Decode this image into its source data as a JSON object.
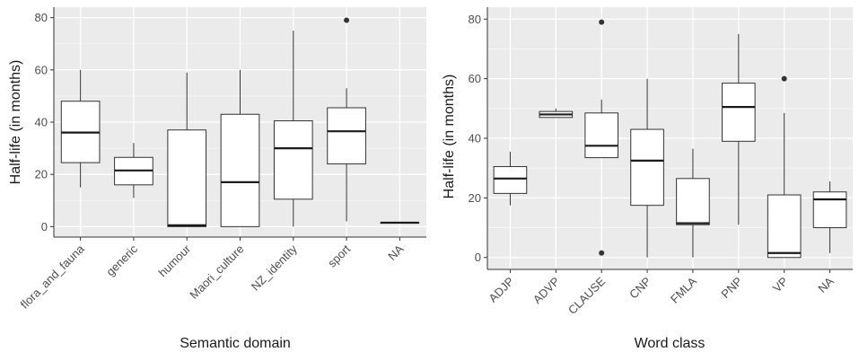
{
  "chart_data": [
    {
      "type": "box",
      "xlabel": "Semantic domain",
      "ylabel": "Half-life (in months)",
      "ylim": [
        -4,
        84
      ],
      "yticks": [
        0,
        20,
        40,
        60,
        80
      ],
      "grid": true,
      "background": "#ebebeb",
      "categories": [
        "flora_and_fauna",
        "generic",
        "humour",
        "Maori_culture",
        "NZ_identity",
        "sport",
        "NA"
      ],
      "boxes": [
        {
          "min": 15,
          "q1": 24.5,
          "median": 36,
          "q3": 48,
          "max": 60,
          "outliers": []
        },
        {
          "min": 11,
          "q1": 16,
          "median": 21.5,
          "q3": 26.5,
          "max": 32,
          "outliers": []
        },
        {
          "min": 0,
          "q1": 0,
          "median": 0.5,
          "q3": 37,
          "max": 59,
          "outliers": []
        },
        {
          "min": 0,
          "q1": 0,
          "median": 17,
          "q3": 43,
          "max": 60,
          "outliers": []
        },
        {
          "min": 0,
          "q1": 10.5,
          "median": 30,
          "q3": 40.5,
          "max": 75,
          "outliers": []
        },
        {
          "min": 2,
          "q1": 24,
          "median": 36.5,
          "q3": 45.5,
          "max": 53,
          "outliers": [
            79
          ]
        },
        {
          "min": 1.5,
          "q1": 1.5,
          "median": 1.5,
          "q3": 1.5,
          "max": 1.5,
          "outliers": []
        }
      ]
    },
    {
      "type": "box",
      "xlabel": "Word class",
      "ylabel": "Half-life (in months)",
      "ylim": [
        -4,
        84
      ],
      "yticks": [
        0,
        20,
        40,
        60,
        80
      ],
      "grid": true,
      "background": "#ebebeb",
      "categories": [
        "ADJP",
        "ADVP",
        "CLAUSE",
        "CNP",
        "FMLA",
        "PNP",
        "VP",
        "NA"
      ],
      "boxes": [
        {
          "min": 17.5,
          "q1": 21.5,
          "median": 26.5,
          "q3": 30.5,
          "max": 35.5,
          "outliers": []
        },
        {
          "min": 47,
          "q1": 47,
          "median": 48,
          "q3": 49,
          "max": 50,
          "outliers": []
        },
        {
          "min": 33.5,
          "q1": 33.5,
          "median": 37.5,
          "q3": 48.5,
          "max": 53,
          "outliers": [
            79,
            1.5
          ]
        },
        {
          "min": 0,
          "q1": 17.5,
          "median": 32.5,
          "q3": 43,
          "max": 60,
          "outliers": []
        },
        {
          "min": 0,
          "q1": 11,
          "median": 11.5,
          "q3": 26.5,
          "max": 36.5,
          "outliers": []
        },
        {
          "min": 11,
          "q1": 39,
          "median": 50.5,
          "q3": 58.5,
          "max": 75,
          "outliers": []
        },
        {
          "min": 0,
          "q1": 0,
          "median": 1.5,
          "q3": 21,
          "max": 48.5,
          "outliers": [
            60
          ]
        },
        {
          "min": 1.5,
          "q1": 10,
          "median": 19.5,
          "q3": 22,
          "max": 25.5,
          "outliers": []
        }
      ]
    }
  ]
}
